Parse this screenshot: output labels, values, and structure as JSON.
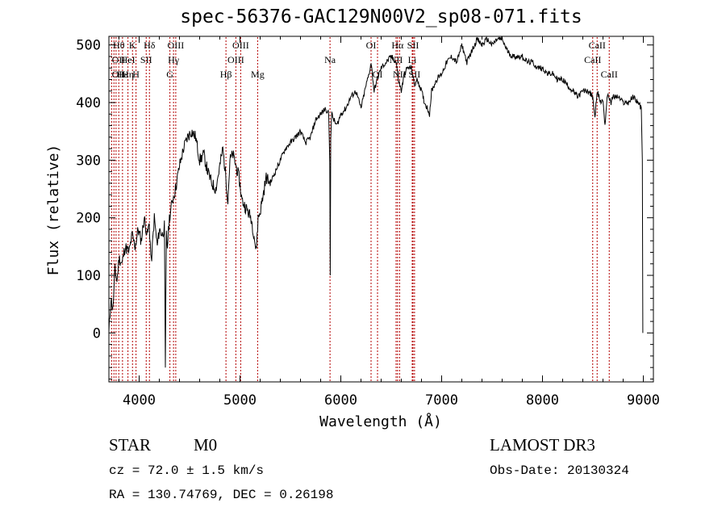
{
  "chart_data": {
    "type": "line",
    "title": "spec-56376-GAC129N00V2_sp08-071.fits",
    "xlabel": "Wavelength (Å)",
    "ylabel": "Flux (relative)",
    "xlim": [
      3700,
      9100
    ],
    "ylim": [
      -85,
      515
    ],
    "xticks": [
      4000,
      5000,
      6000,
      7000,
      8000,
      9000
    ],
    "yticks": [
      0,
      100,
      200,
      300,
      400,
      500
    ],
    "grid": false,
    "series": [
      {
        "name": "spectrum",
        "x": [
          3700,
          3720,
          3740,
          3760,
          3780,
          3800,
          3830,
          3860,
          3900,
          3930,
          3960,
          3990,
          4020,
          4050,
          4080,
          4100,
          4120,
          4150,
          4180,
          4200,
          4230,
          4250,
          4260,
          4270,
          4280,
          4300,
          4330,
          4360,
          4400,
          4440,
          4480,
          4520,
          4560,
          4600,
          4640,
          4680,
          4720,
          4760,
          4800,
          4830,
          4860,
          4880,
          4900,
          4930,
          4960,
          4990,
          5020,
          5050,
          5080,
          5110,
          5140,
          5160,
          5180,
          5200,
          5230,
          5260,
          5300,
          5350,
          5400,
          5450,
          5500,
          5550,
          5600,
          5650,
          5700,
          5750,
          5800,
          5850,
          5880,
          5890,
          5895,
          5900,
          5910,
          5930,
          5960,
          6000,
          6050,
          6100,
          6150,
          6200,
          6250,
          6280,
          6300,
          6330,
          6360,
          6380,
          6400,
          6450,
          6500,
          6550,
          6570,
          6600,
          6630,
          6660,
          6700,
          6730,
          6760,
          6800,
          6830,
          6860,
          6880,
          6900,
          6950,
          7000,
          7050,
          7100,
          7150,
          7200,
          7250,
          7300,
          7350,
          7400,
          7450,
          7500,
          7550,
          7600,
          7650,
          7700,
          7750,
          7800,
          7850,
          7900,
          7950,
          8000,
          8050,
          8100,
          8150,
          8200,
          8250,
          8300,
          8350,
          8400,
          8450,
          8500,
          8520,
          8540,
          8560,
          8580,
          8600,
          8620,
          8640,
          8660,
          8680,
          8700,
          8750,
          8800,
          8850,
          8900,
          8950,
          8980,
          8990,
          8995
        ],
        "values": [
          0,
          60,
          40,
          110,
          90,
          130,
          120,
          150,
          140,
          170,
          150,
          180,
          160,
          200,
          170,
          190,
          120,
          200,
          150,
          180,
          170,
          185,
          -60,
          170,
          150,
          200,
          230,
          250,
          290,
          320,
          340,
          350,
          340,
          300,
          310,
          280,
          260,
          250,
          290,
          320,
          270,
          230,
          300,
          310,
          290,
          270,
          230,
          220,
          210,
          200,
          170,
          140,
          200,
          210,
          240,
          270,
          260,
          280,
          300,
          320,
          330,
          340,
          350,
          330,
          340,
          370,
          380,
          390,
          380,
          300,
          100,
          340,
          380,
          370,
          360,
          380,
          390,
          410,
          420,
          390,
          430,
          450,
          470,
          420,
          440,
          450,
          460,
          470,
          480,
          470,
          440,
          420,
          450,
          460,
          460,
          430,
          440,
          420,
          400,
          390,
          380,
          420,
          440,
          450,
          470,
          480,
          470,
          500,
          470,
          490,
          510,
          500,
          510,
          500,
          510,
          510,
          490,
          480,
          480,
          480,
          470,
          470,
          460,
          460,
          450,
          450,
          440,
          440,
          430,
          420,
          410,
          420,
          420,
          410,
          370,
          420,
          410,
          400,
          405,
          360,
          410,
          410,
          400,
          410,
          410,
          400,
          400,
          410,
          400,
          390,
          300,
          0
        ]
      }
    ],
    "annotations": [
      {
        "label": "Hθ",
        "x": 3798,
        "row": 1
      },
      {
        "label": "OII",
        "x": 3727,
        "row": 2
      },
      {
        "label": "OII",
        "x": 3727,
        "row": 3
      },
      {
        "label": "Hε",
        "x": 3835,
        "row": 3
      },
      {
        "label": "Hη",
        "x": 3889,
        "row": 3
      },
      {
        "label": "K",
        "x": 3934,
        "row": 1
      },
      {
        "label": "HeI",
        "x": 3889,
        "row": 2
      },
      {
        "label": "H",
        "x": 3969,
        "row": 3
      },
      {
        "label": "Hδ",
        "x": 4102,
        "row": 1
      },
      {
        "label": "SII",
        "x": 4070,
        "row": 2
      },
      {
        "label": "OIII",
        "x": 4363,
        "row": 1
      },
      {
        "label": "Hγ",
        "x": 4341,
        "row": 2
      },
      {
        "label": "G",
        "x": 4305,
        "row": 3
      },
      {
        "label": "OIII",
        "x": 5007,
        "row": 1
      },
      {
        "label": "OIII",
        "x": 4959,
        "row": 2
      },
      {
        "label": "Hβ",
        "x": 4861,
        "row": 3
      },
      {
        "label": "Mg",
        "x": 5175,
        "row": 3
      },
      {
        "label": "Na",
        "x": 5893,
        "row": 2
      },
      {
        "label": "OI",
        "x": 6300,
        "row": 1
      },
      {
        "label": "OI",
        "x": 6364,
        "row": 3
      },
      {
        "label": "Hα",
        "x": 6563,
        "row": 1
      },
      {
        "label": "NII",
        "x": 6548,
        "row": 2
      },
      {
        "label": "NII",
        "x": 6583,
        "row": 3
      },
      {
        "label": "SII",
        "x": 6716,
        "row": 1
      },
      {
        "label": "Li",
        "x": 6708,
        "row": 2
      },
      {
        "label": "SII",
        "x": 6731,
        "row": 3
      },
      {
        "label": "CaII",
        "x": 8542,
        "row": 1
      },
      {
        "label": "CaII",
        "x": 8498,
        "row": 2
      },
      {
        "label": "CaII",
        "x": 8662,
        "row": 3
      }
    ],
    "line_markers": [
      3727,
      3750,
      3771,
      3798,
      3835,
      3889,
      3934,
      3969,
      4070,
      4102,
      4305,
      4341,
      4363,
      4861,
      4959,
      5007,
      5175,
      5893,
      6300,
      6364,
      6548,
      6563,
      6583,
      6708,
      6716,
      6731,
      8498,
      8542,
      8662
    ]
  },
  "info": {
    "object_type": "STAR",
    "subclass": "M0",
    "survey": "LAMOST DR3",
    "velocity": "cz = 72.0 ± 1.5 km/s",
    "obs_date": "Obs-Date: 20130324",
    "coords": "RA = 130.74769, DEC =    0.26198"
  }
}
